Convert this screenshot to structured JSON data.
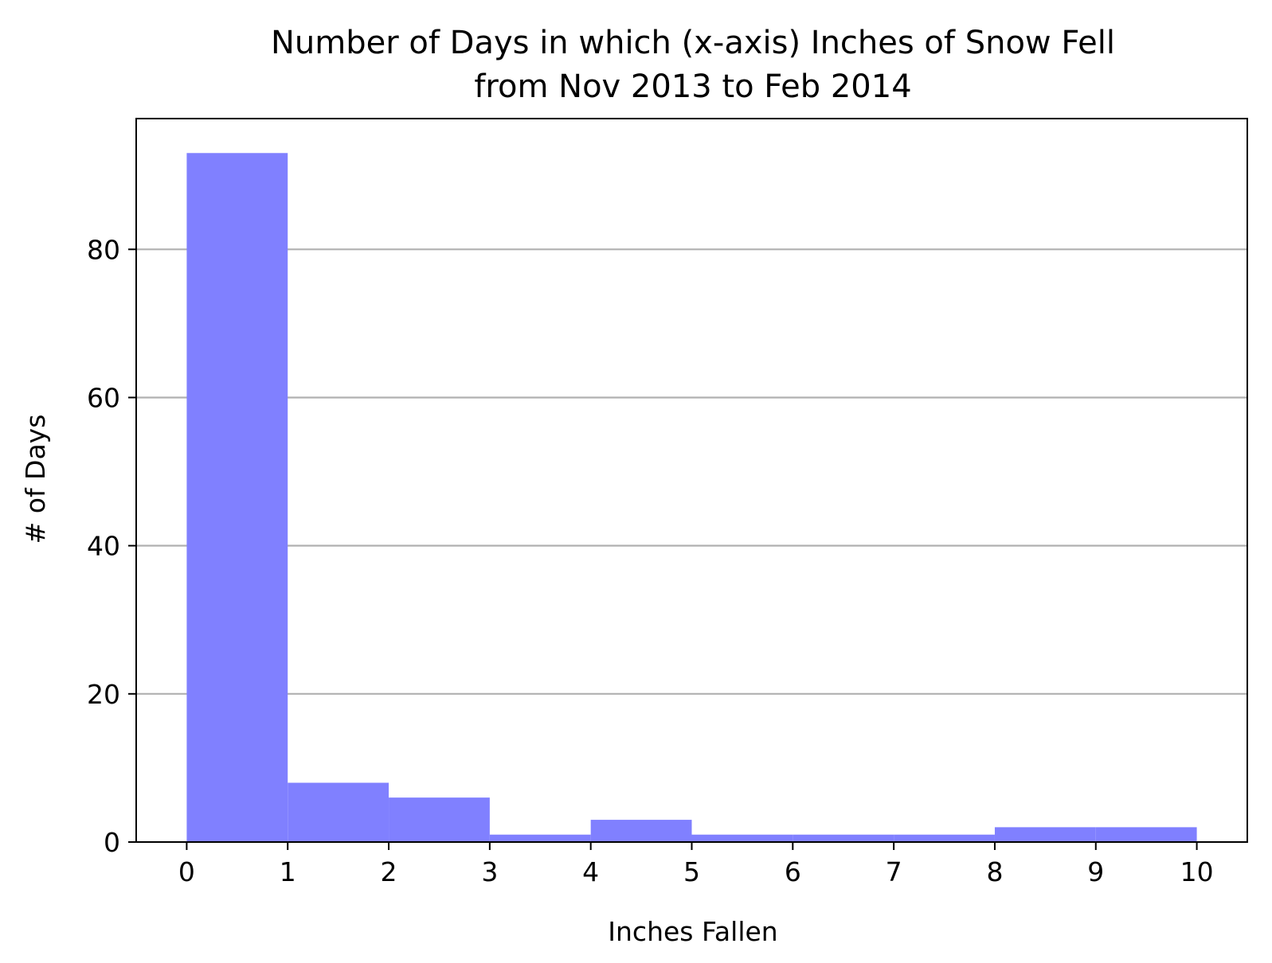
{
  "chart_data": {
    "type": "bar",
    "title_lines": [
      "Number of Days in which (x-axis) Inches of Snow Fell",
      "from Nov 2013 to Feb 2014"
    ],
    "xlabel": "Inches Fallen",
    "ylabel": "# of Days",
    "bins": [
      {
        "x0": 0,
        "x1": 1,
        "value": 93
      },
      {
        "x0": 1,
        "x1": 2,
        "value": 8
      },
      {
        "x0": 2,
        "x1": 3,
        "value": 6
      },
      {
        "x0": 3,
        "x1": 4,
        "value": 1
      },
      {
        "x0": 4,
        "x1": 5,
        "value": 3
      },
      {
        "x0": 5,
        "x1": 6,
        "value": 1
      },
      {
        "x0": 6,
        "x1": 7,
        "value": 1
      },
      {
        "x0": 7,
        "x1": 8,
        "value": 1
      },
      {
        "x0": 8,
        "x1": 9,
        "value": 2
      },
      {
        "x0": 9,
        "x1": 10,
        "value": 2
      }
    ],
    "x_ticks": [
      "0",
      "1",
      "2",
      "3",
      "4",
      "5",
      "6",
      "7",
      "8",
      "9",
      "10"
    ],
    "y_ticks": [
      "0",
      "20",
      "40",
      "60",
      "80"
    ],
    "xlim": [
      -0.5,
      10.5
    ],
    "ylim": [
      0,
      97.65
    ],
    "grid": "y",
    "bar_color": "#8080ff",
    "grid_color": "#b0b0b0"
  }
}
